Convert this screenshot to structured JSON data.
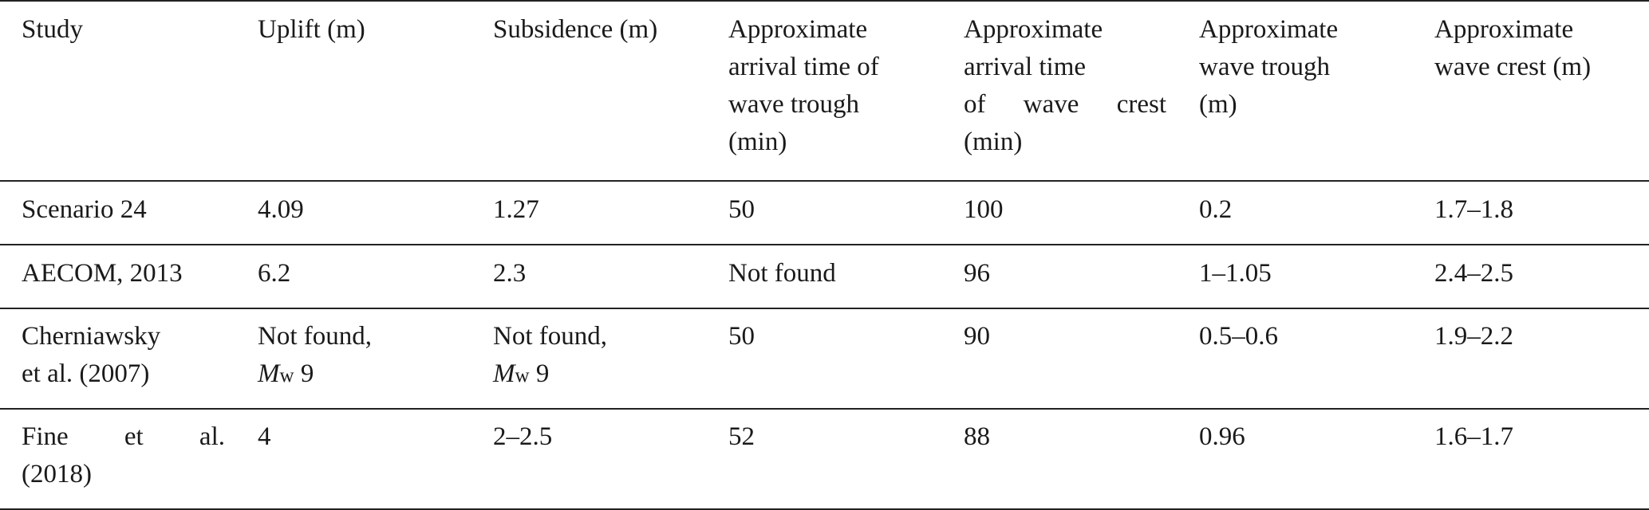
{
  "table": {
    "headers": [
      {
        "lines": [
          "Study"
        ]
      },
      {
        "lines": [
          "Uplift (m)"
        ]
      },
      {
        "lines": [
          "Subsidence (m)"
        ]
      },
      {
        "lines": [
          "Approximate",
          "arrival time of",
          "wave trough",
          "(min)"
        ]
      },
      {
        "lines": [
          "Approximate",
          "arrival time",
          "of wave crest",
          "(min)"
        ]
      },
      {
        "lines": [
          "Approximate",
          "wave trough",
          "(m)"
        ]
      },
      {
        "lines": [
          "Approximate",
          "wave crest (m)"
        ]
      }
    ],
    "rows": [
      {
        "study": [
          "Scenario 24"
        ],
        "uplift": "4.09",
        "subsidence": "1.27",
        "trough_time": "50",
        "crest_time": "100",
        "trough": "0.2",
        "crest": "1.7–1.8"
      },
      {
        "study": [
          "AECOM, 2013"
        ],
        "uplift": "6.2",
        "subsidence": "2.3",
        "trough_time": "Not found",
        "crest_time": "96",
        "trough": "1–1.05",
        "crest": "2.4–2.5"
      },
      {
        "study": [
          "Cherniawsky",
          "et al. (2007)"
        ],
        "uplift_line1": "Not found,",
        "uplift_mag": "M",
        "uplift_sub": "w",
        "uplift_val": "9",
        "subsidence_line1": "Not found,",
        "subsidence_mag": "M",
        "subsidence_sub": "w",
        "subsidence_val": "9",
        "trough_time": "50",
        "crest_time": "90",
        "trough": "0.5–0.6",
        "crest": "1.9–2.2"
      },
      {
        "study": [
          "Fine et al.",
          "(2018)"
        ],
        "uplift": "4",
        "subsidence": "2–2.5",
        "trough_time": "52",
        "crest_time": "88",
        "trough": "0.96",
        "crest": "1.6–1.7"
      }
    ]
  }
}
